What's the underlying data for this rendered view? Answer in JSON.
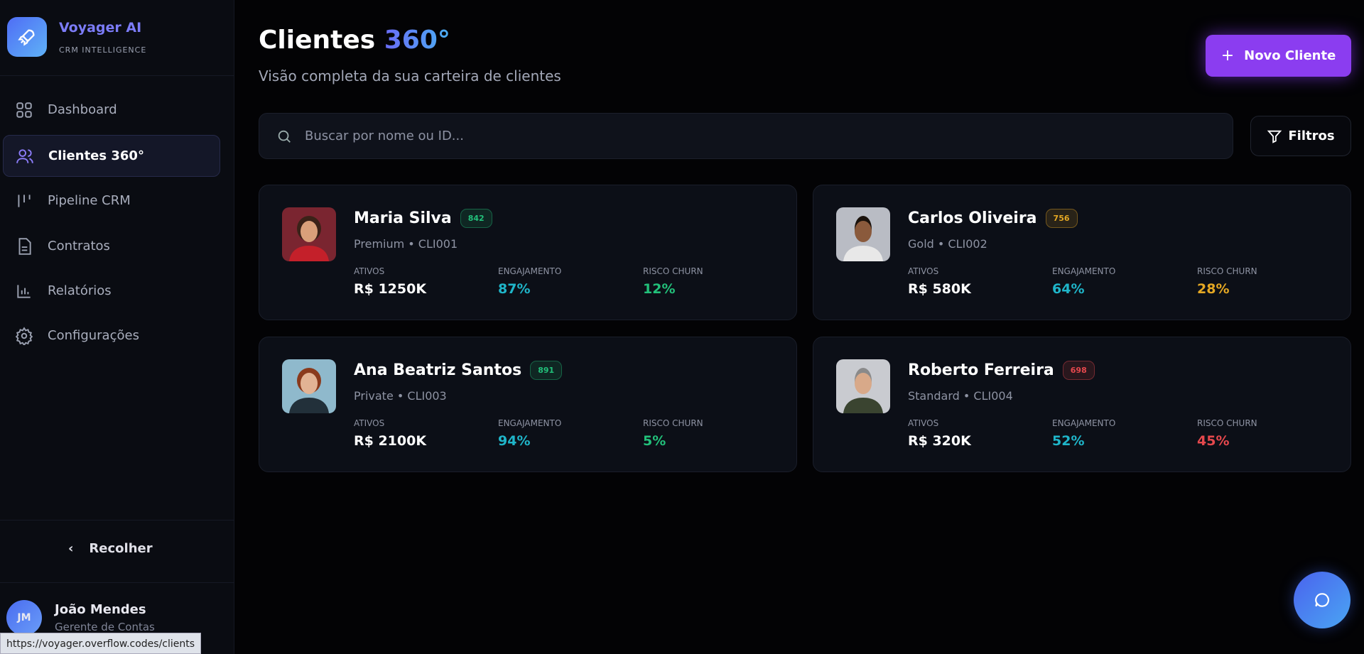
{
  "sidebar": {
    "brand": "Voyager AI",
    "tagline": "CRM INTELLIGENCE",
    "nav": [
      "Dashboard",
      "Clientes 360°",
      "Pipeline CRM",
      "Contratos",
      "Relatórios",
      "Configurações"
    ],
    "collapse": "Recolher",
    "user": {
      "initials": "JM",
      "name": "João Mendes",
      "role": "Gerente de Contas"
    }
  },
  "header": {
    "title": "Clientes",
    "title_accent": "360°",
    "subtitle": "Visão completa da sua carteira de clientes",
    "button": "Novo Cliente"
  },
  "search": {
    "placeholder": "Buscar por nome ou ID...",
    "filter": "Filtros"
  },
  "metric_labels": [
    "ATIVOS",
    "ENGAJAMENTO",
    "RISCO CHURN"
  ],
  "clients": [
    {
      "name": "Maria Silva",
      "score": "842",
      "score_color": "#22c07a",
      "subtitle": "Premium • CLI001",
      "assets": "R$ 1250K",
      "engagement": "87%",
      "churn": "12%",
      "churn_color": "#22c07a"
    },
    {
      "name": "Carlos Oliveira",
      "score": "756",
      "score_color": "#e5a823",
      "subtitle": "Gold • CLI002",
      "assets": "R$ 580K",
      "engagement": "64%",
      "churn": "28%",
      "churn_color": "#e5a823"
    },
    {
      "name": "Ana Beatriz Santos",
      "score": "891",
      "score_color": "#22c07a",
      "subtitle": "Private • CLI003",
      "assets": "R$ 2100K",
      "engagement": "94%",
      "churn": "5%",
      "churn_color": "#22c07a"
    },
    {
      "name": "Roberto Ferreira",
      "score": "698",
      "score_color": "#e5484d",
      "subtitle": "Standard • CLI004",
      "assets": "R$ 320K",
      "engagement": "52%",
      "churn": "45%",
      "churn_color": "#e5484d"
    }
  ],
  "status_url": "https://voyager.overflow.codes/clients"
}
